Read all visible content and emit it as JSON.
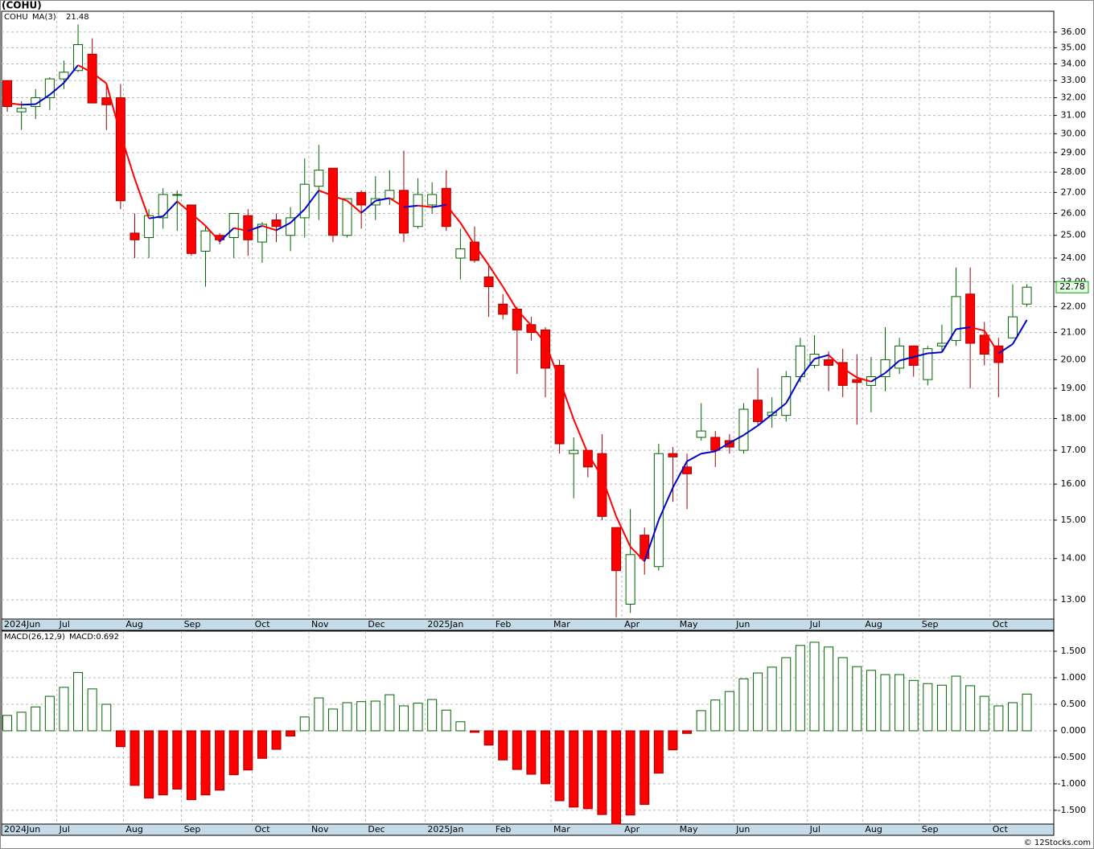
{
  "title": "(COHU)",
  "footer": "© 12Stocks.com",
  "chart_data": [
    {
      "type": "candlestick",
      "symbol": "COHU",
      "log_scale": true,
      "grid": true,
      "up_color": "#ffffff",
      "up_edge": "#006400",
      "down_color": "#ff0000",
      "down_edge": "#a00000",
      "open": [
        33.0,
        31.2,
        31.5,
        32.0,
        33.1,
        33.6,
        34.6,
        32.0,
        32.0,
        25.1,
        24.9,
        25.8,
        26.9,
        26.4,
        24.3,
        25.0,
        24.9,
        25.9,
        24.7,
        25.7,
        25.0,
        25.8,
        27.3,
        28.2,
        25.0,
        27.0,
        26.4,
        26.7,
        27.1,
        25.4,
        26.4,
        27.2,
        24.0,
        24.7,
        23.2,
        22.1,
        21.9,
        21.3,
        21.1,
        19.8,
        16.9,
        17.0,
        16.9,
        14.8,
        12.9,
        14.6,
        13.8,
        16.9,
        16.5,
        17.4,
        17.4,
        17.3,
        17.0,
        18.6,
        18.1,
        18.1,
        19.4,
        19.8,
        20.0,
        19.9,
        19.3,
        19.1,
        19.4,
        19.7,
        20.5,
        19.3,
        20.5,
        20.7,
        22.5,
        20.9,
        20.5,
        20.8,
        22.1
      ],
      "high": [
        33.0,
        31.8,
        32.5,
        33.2,
        34.2,
        36.5,
        35.6,
        32.8,
        32.8,
        26.0,
        26.2,
        27.2,
        27.1,
        26.4,
        25.4,
        25.1,
        26.0,
        26.2,
        25.6,
        26.0,
        26.3,
        28.7,
        29.4,
        28.2,
        26.7,
        27.1,
        27.8,
        28.1,
        29.1,
        27.7,
        27.5,
        28.1,
        25.3,
        25.4,
        23.7,
        22.5,
        22.0,
        21.6,
        21.2,
        20.0,
        17.4,
        17.0,
        17.5,
        14.8,
        15.3,
        14.8,
        17.2,
        17.1,
        16.9,
        18.5,
        17.6,
        17.5,
        18.5,
        19.7,
        18.7,
        19.6,
        20.8,
        20.9,
        20.3,
        20.4,
        20.2,
        20.1,
        21.2,
        20.8,
        20.5,
        20.5,
        21.3,
        23.6,
        23.6,
        21.4,
        20.8,
        22.9,
        22.9
      ],
      "low": [
        31.2,
        30.2,
        30.8,
        31.3,
        32.5,
        33.5,
        31.7,
        30.2,
        26.2,
        24.0,
        24.0,
        25.3,
        25.2,
        24.1,
        22.8,
        24.6,
        24.0,
        24.1,
        23.8,
        24.7,
        24.3,
        24.9,
        25.7,
        24.7,
        24.9,
        25.3,
        25.7,
        26.4,
        24.7,
        25.3,
        26.0,
        25.2,
        23.1,
        23.8,
        21.6,
        21.5,
        19.5,
        20.7,
        18.7,
        16.9,
        15.6,
        16.2,
        15.0,
        12.6,
        12.7,
        13.6,
        13.7,
        15.5,
        15.3,
        17.3,
        16.5,
        16.9,
        16.9,
        17.8,
        17.7,
        17.9,
        19.2,
        19.7,
        18.9,
        18.7,
        17.8,
        18.2,
        18.9,
        19.5,
        19.4,
        19.1,
        20.3,
        20.5,
        19.0,
        19.8,
        18.7,
        20.8,
        22.0
      ],
      "close": [
        31.5,
        31.4,
        32.0,
        33.1,
        33.5,
        35.2,
        31.7,
        31.6,
        26.6,
        24.8,
        25.9,
        26.9,
        26.9,
        24.2,
        25.2,
        24.8,
        26.0,
        24.8,
        25.5,
        25.4,
        25.8,
        27.4,
        28.1,
        25.0,
        26.7,
        26.4,
        26.7,
        27.1,
        25.1,
        26.9,
        26.9,
        25.4,
        24.4,
        23.9,
        22.8,
        21.7,
        21.1,
        21.0,
        19.7,
        17.2,
        17.0,
        16.5,
        15.1,
        13.7,
        14.1,
        14.0,
        16.9,
        16.8,
        16.3,
        17.6,
        17.0,
        17.1,
        18.3,
        17.9,
        18.2,
        19.4,
        20.5,
        20.2,
        19.8,
        19.1,
        19.2,
        19.4,
        20.0,
        20.5,
        19.8,
        20.4,
        20.6,
        22.4,
        20.6,
        20.2,
        19.9,
        21.6,
        22.78
      ],
      "ma": {
        "name": "MA(3)",
        "up_color": "#0000cc",
        "down_color": "#ff0000",
        "values": [
          31.7,
          31.6,
          31.63,
          32.17,
          32.87,
          33.93,
          33.47,
          32.83,
          29.97,
          27.67,
          25.77,
          25.87,
          26.57,
          26.0,
          25.43,
          24.73,
          25.33,
          25.2,
          25.43,
          25.23,
          25.57,
          26.2,
          27.1,
          26.83,
          26.6,
          26.03,
          26.6,
          26.73,
          26.3,
          26.37,
          26.3,
          26.4,
          25.57,
          24.57,
          23.7,
          22.8,
          21.87,
          21.27,
          20.6,
          19.3,
          17.97,
          16.9,
          16.2,
          15.1,
          14.3,
          13.93,
          15.0,
          15.9,
          16.67,
          16.9,
          16.97,
          17.23,
          17.47,
          17.77,
          18.13,
          18.5,
          19.37,
          20.03,
          20.17,
          19.7,
          19.37,
          19.23,
          19.53,
          19.97,
          20.1,
          20.23,
          20.27,
          21.13,
          21.2,
          21.07,
          20.23,
          20.57,
          21.48
        ]
      },
      "ylim": [
        12.56,
        37.37
      ],
      "yticks": [
        {
          "value": 13,
          "label": "13.00"
        },
        {
          "value": 14,
          "label": "14.00"
        },
        {
          "value": 15,
          "label": "15.00"
        },
        {
          "value": 16,
          "label": "16.00"
        },
        {
          "value": 17,
          "label": "17.00"
        },
        {
          "value": 18,
          "label": "18.00"
        },
        {
          "value": 19,
          "label": "19.00"
        },
        {
          "value": 20,
          "label": "20.00"
        },
        {
          "value": 21,
          "label": "21.00"
        },
        {
          "value": 22,
          "label": "22.00"
        },
        {
          "value": 23,
          "label": "23.00"
        },
        {
          "value": 24,
          "label": "24.00"
        },
        {
          "value": 25,
          "label": "25.00"
        },
        {
          "value": 26,
          "label": "26.00"
        },
        {
          "value": 27,
          "label": "27.00"
        },
        {
          "value": 28,
          "label": "28.00"
        },
        {
          "value": 29,
          "label": "29.00"
        },
        {
          "value": 30,
          "label": "30.00"
        },
        {
          "value": 31,
          "label": "31.00"
        },
        {
          "value": 32,
          "label": "32.00"
        },
        {
          "value": 33,
          "label": "33.00"
        },
        {
          "value": 34,
          "label": "34.00"
        },
        {
          "value": 35,
          "label": "35.00"
        },
        {
          "value": 36,
          "label": "36.00"
        }
      ],
      "xlim": [
        -0.4,
        73.9
      ],
      "xticks": [
        {
          "value": -0.4,
          "label": "2024Jun"
        },
        {
          "value": 3.5,
          "label": "Jul"
        },
        {
          "value": 8.2,
          "label": "Aug"
        },
        {
          "value": 12.3,
          "label": "Sep"
        },
        {
          "value": 17.3,
          "label": "Oct"
        },
        {
          "value": 21.3,
          "label": "Nov"
        },
        {
          "value": 25.3,
          "label": "Dec"
        },
        {
          "value": 29.5,
          "label": "2025Jan"
        },
        {
          "value": 34.3,
          "label": "Feb"
        },
        {
          "value": 38.4,
          "label": "Mar"
        },
        {
          "value": 43.4,
          "label": "Apr"
        },
        {
          "value": 47.3,
          "label": "May"
        },
        {
          "value": 51.3,
          "label": "Jun"
        },
        {
          "value": 56.5,
          "label": "Jul"
        },
        {
          "value": 60.4,
          "label": "Aug"
        },
        {
          "value": 64.4,
          "label": "Sep"
        },
        {
          "value": 69.4,
          "label": "Oct"
        }
      ]
    },
    {
      "type": "bar",
      "name": "MACD(26,12,9)",
      "value_label": "MACD:0.692",
      "grid": true,
      "pos_color": "#ffffff",
      "pos_edge": "#006400",
      "neg_color": "#ff0000",
      "neg_edge": "#a00000",
      "values": [
        0.29,
        0.35,
        0.45,
        0.65,
        0.82,
        1.1,
        0.79,
        0.5,
        -0.3,
        -1.03,
        -1.27,
        -1.21,
        -1.1,
        -1.3,
        -1.21,
        -1.12,
        -0.83,
        -0.74,
        -0.52,
        -0.35,
        -0.1,
        0.26,
        0.62,
        0.41,
        0.53,
        0.55,
        0.56,
        0.68,
        0.47,
        0.52,
        0.59,
        0.39,
        0.17,
        -0.03,
        -0.27,
        -0.55,
        -0.73,
        -0.82,
        -1.0,
        -1.32,
        -1.44,
        -1.47,
        -1.58,
        -1.76,
        -1.59,
        -1.39,
        -0.8,
        -0.36,
        -0.05,
        0.38,
        0.58,
        0.74,
        0.98,
        1.09,
        1.2,
        1.38,
        1.61,
        1.67,
        1.58,
        1.38,
        1.21,
        1.14,
        1.06,
        1.06,
        0.95,
        0.89,
        0.86,
        1.03,
        0.85,
        0.65,
        0.47,
        0.53,
        0.692
      ],
      "ylim": [
        -1.76,
        1.88
      ],
      "yticks": [
        {
          "value": 1.5,
          "label": "1.500"
        },
        {
          "value": 1,
          "label": "1.000"
        },
        {
          "value": 0.5,
          "label": "0.500"
        },
        {
          "value": 0,
          "label": "0.000"
        },
        {
          "value": -0.5,
          "label": "-0.500"
        },
        {
          "value": -1,
          "label": "-1.000"
        },
        {
          "value": -1.5,
          "label": "-1.500"
        }
      ],
      "xlim": [
        -0.4,
        73.9
      ],
      "xticks": [
        {
          "value": -0.4,
          "label": "2024Jun"
        },
        {
          "value": 3.5,
          "label": "Jul"
        },
        {
          "value": 8.2,
          "label": "Aug"
        },
        {
          "value": 12.3,
          "label": "Sep"
        },
        {
          "value": 17.3,
          "label": "Oct"
        },
        {
          "value": 21.3,
          "label": "Nov"
        },
        {
          "value": 25.3,
          "label": "Dec"
        },
        {
          "value": 29.5,
          "label": "2025Jan"
        },
        {
          "value": 34.3,
          "label": "Feb"
        },
        {
          "value": 38.4,
          "label": "Mar"
        },
        {
          "value": 43.4,
          "label": "Apr"
        },
        {
          "value": 47.3,
          "label": "May"
        },
        {
          "value": 51.3,
          "label": "Jun"
        },
        {
          "value": 56.5,
          "label": "Jul"
        },
        {
          "value": 60.4,
          "label": "Aug"
        },
        {
          "value": 64.4,
          "label": "Sep"
        },
        {
          "value": 69.4,
          "label": "Oct"
        }
      ]
    }
  ]
}
